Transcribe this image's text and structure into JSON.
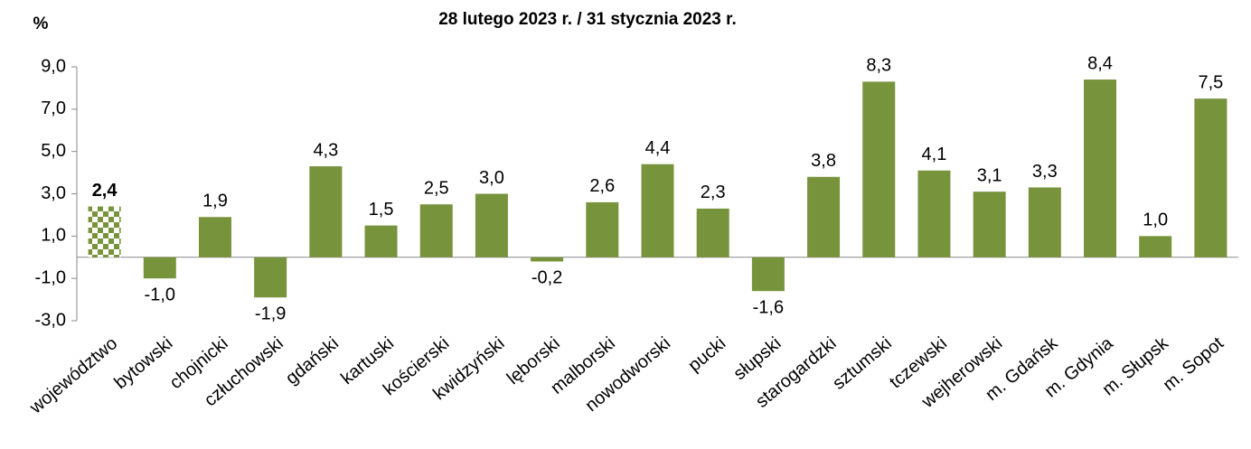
{
  "chart_data": {
    "type": "bar",
    "title": "28 lutego 2023 r. / 31 stycznia 2023 r.",
    "y_label": "%",
    "categories": [
      "województwo",
      "bytowski",
      "chojnicki",
      "człuchowski",
      "gdański",
      "kartuski",
      "kościerski",
      "kwidzyński",
      "lęborski",
      "malborski",
      "nowodworski",
      "pucki",
      "słupski",
      "starogardzki",
      "sztumski",
      "tczewski",
      "wejherowski",
      "m. Gdańsk",
      "m. Gdynia",
      "m. Słupsk",
      "m. Sopot"
    ],
    "values": [
      2.4,
      -1.0,
      1.9,
      -1.9,
      4.3,
      1.5,
      2.5,
      3.0,
      -0.2,
      2.6,
      4.4,
      2.3,
      -1.6,
      3.8,
      8.3,
      4.1,
      3.1,
      3.3,
      8.4,
      1.0,
      7.5
    ],
    "value_labels": [
      "2,4",
      "-1,0",
      "1,9",
      "-1,9",
      "4,3",
      "1,5",
      "2,5",
      "3,0",
      "-0,2",
      "2,6",
      "4,4",
      "2,3",
      "-1,6",
      "3,8",
      "8,3",
      "4,1",
      "3,1",
      "3,3",
      "8,4",
      "1,0",
      "7,5"
    ],
    "color": "#77933c",
    "highlight": 0,
    "ylim": [
      -3,
      9
    ],
    "yticks": [
      {
        "value": -3,
        "label": "-3,0"
      },
      {
        "value": -1,
        "label": "-1,0"
      },
      {
        "value": 1,
        "label": "1,0"
      },
      {
        "value": 3,
        "label": "3,0"
      },
      {
        "value": 5,
        "label": "5,0"
      },
      {
        "value": 7,
        "label": "7,0"
      },
      {
        "value": 9,
        "label": "9,0"
      }
    ],
    "grid": false
  }
}
